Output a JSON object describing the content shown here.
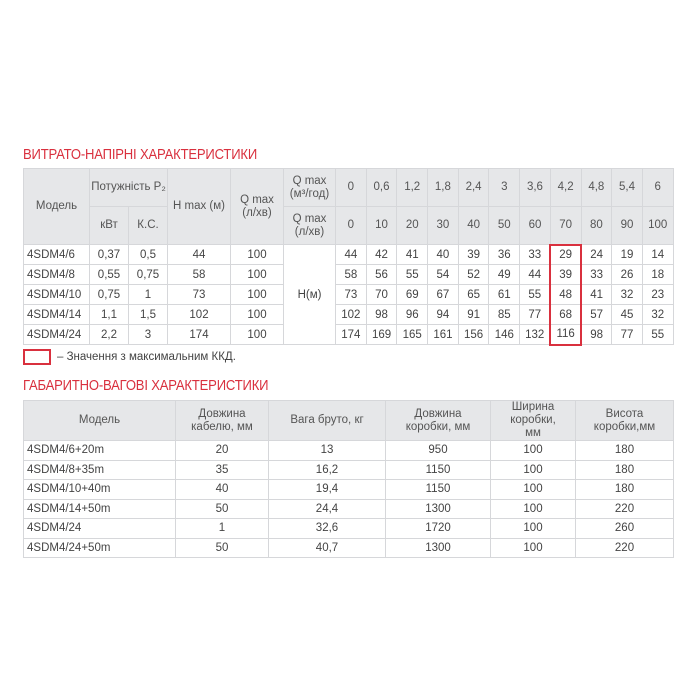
{
  "flow_section": {
    "title": "ВИТРАТО-НАПІРНІ ХАРАКТЕРИСТИКИ",
    "headers": {
      "model": "Модель",
      "power": "Потужність P₂",
      "kw": "кВт",
      "hp": "К.С.",
      "hmax": "H max (м)",
      "qmax": "Q max (л/хв)",
      "q_m3": "Q max (м³/год)",
      "q_lmin": "Q max (л/хв)"
    },
    "flow_m3h": [
      "0",
      "0,6",
      "1,2",
      "1,8",
      "2,4",
      "3",
      "3,6",
      "4,2",
      "4,8",
      "5,4",
      "6"
    ],
    "flow_lmin": [
      "0",
      "10",
      "20",
      "30",
      "40",
      "50",
      "60",
      "70",
      "80",
      "90",
      "100"
    ],
    "head_label": "H(м)",
    "highlight_column_index": 7,
    "rows": [
      {
        "model": "4SDM4/6",
        "kw": "0,37",
        "hp": "0,5",
        "hmax": "44",
        "qmax": "100",
        "heads": [
          "44",
          "42",
          "41",
          "40",
          "39",
          "36",
          "33",
          "29",
          "24",
          "19",
          "14"
        ]
      },
      {
        "model": "4SDM4/8",
        "kw": "0,55",
        "hp": "0,75",
        "hmax": "58",
        "qmax": "100",
        "heads": [
          "58",
          "56",
          "55",
          "54",
          "52",
          "49",
          "44",
          "39",
          "33",
          "26",
          "18"
        ]
      },
      {
        "model": "4SDM4/10",
        "kw": "0,75",
        "hp": "1",
        "hmax": "73",
        "qmax": "100",
        "heads": [
          "73",
          "70",
          "69",
          "67",
          "65",
          "61",
          "55",
          "48",
          "41",
          "32",
          "23"
        ]
      },
      {
        "model": "4SDM4/14",
        "kw": "1,1",
        "hp": "1,5",
        "hmax": "102",
        "qmax": "100",
        "heads": [
          "102",
          "98",
          "96",
          "94",
          "91",
          "85",
          "77",
          "68",
          "57",
          "45",
          "32"
        ]
      },
      {
        "model": "4SDM4/24",
        "kw": "2,2",
        "hp": "3",
        "hmax": "174",
        "qmax": "100",
        "heads": [
          "174",
          "169",
          "165",
          "161",
          "156",
          "146",
          "132",
          "116",
          "98",
          "77",
          "55"
        ]
      }
    ],
    "legend_text": "– Значення з максимальним ККД.",
    "accent_color": "#d9303e"
  },
  "dims_section": {
    "title": "ГАБАРИТНО-ВАГОВІ ХАРАКТЕРИСТИКИ",
    "headers": [
      "Модель",
      "Довжина кабелю, мм",
      "Вага бруто, кг",
      "Довжина коробки, мм",
      "Ширина коробки, мм",
      "Висота коробки,мм"
    ],
    "rows": [
      [
        "4SDM4/6+20m",
        "20",
        "13",
        "950",
        "100",
        "180"
      ],
      [
        "4SDM4/8+35m",
        "35",
        "16,2",
        "1150",
        "100",
        "180"
      ],
      [
        "4SDM4/10+40m",
        "40",
        "19,4",
        "1150",
        "100",
        "180"
      ],
      [
        "4SDM4/14+50m",
        "50",
        "24,4",
        "1300",
        "100",
        "220"
      ],
      [
        "4SDM4/24",
        "1",
        "32,6",
        "1720",
        "100",
        "260"
      ],
      [
        "4SDM4/24+50m",
        "50",
        "40,7",
        "1300",
        "100",
        "220"
      ]
    ]
  }
}
